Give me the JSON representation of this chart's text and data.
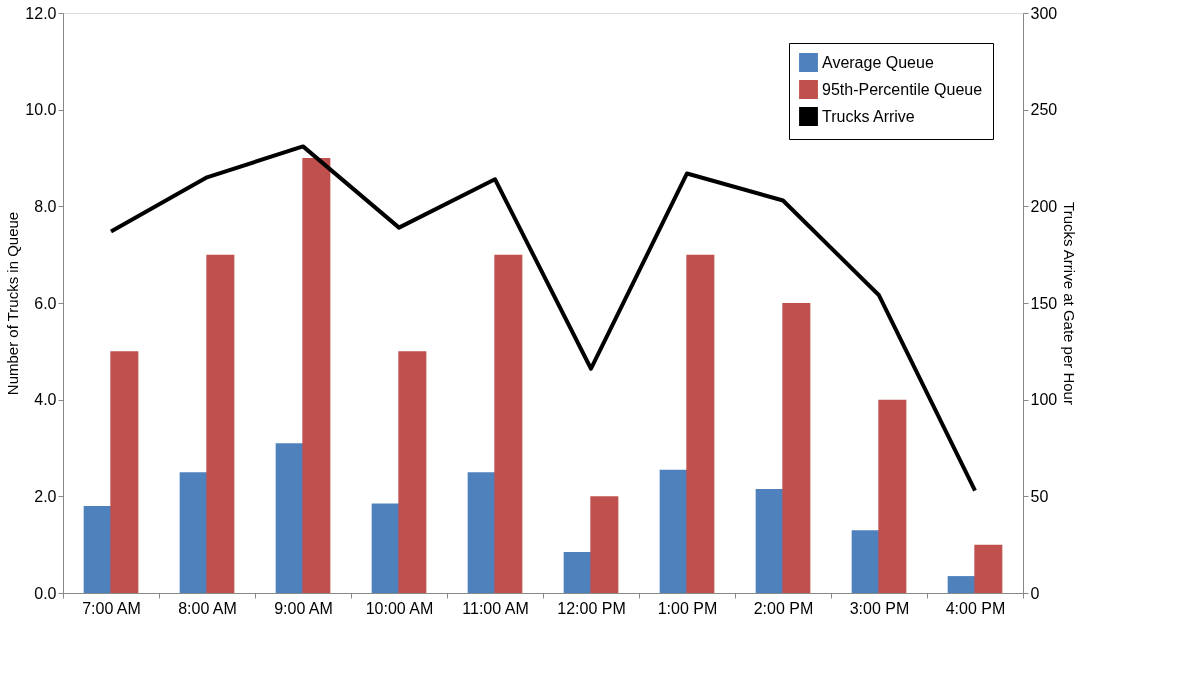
{
  "chart_data": {
    "type": "bar",
    "categories": [
      "7:00 AM",
      "8:00 AM",
      "9:00 AM",
      "10:00 AM",
      "11:00 AM",
      "12:00 PM",
      "1:00 PM",
      "2:00 PM",
      "3:00 PM",
      "4:00 PM"
    ],
    "series": [
      {
        "name": "Average Queue",
        "color": "#4f81bd",
        "values": [
          1.8,
          2.5,
          3.1,
          1.85,
          2.5,
          0.85,
          2.55,
          2.15,
          1.3,
          0.35
        ]
      },
      {
        "name": "95th-Percentile Queue",
        "color": "#c0504d",
        "values": [
          5,
          7,
          9,
          5,
          7,
          2,
          7,
          6,
          4,
          1
        ]
      },
      {
        "name": "Trucks Arrive",
        "color": "#000000",
        "type": "line",
        "axis": "y2",
        "values": [
          187,
          215,
          231,
          189,
          214,
          116,
          217,
          203,
          154,
          53
        ]
      }
    ],
    "ylabel": "Number of Trucks in Queue",
    "y2label": "Trucks Arrive at Gate per Hour",
    "ylim": [
      0,
      12
    ],
    "yticks": [
      {
        "value": 0,
        "label": "0.0"
      },
      {
        "value": 2,
        "label": "2.0"
      },
      {
        "value": 4,
        "label": "4.0"
      },
      {
        "value": 6,
        "label": "6.0"
      },
      {
        "value": 8,
        "label": "8.0"
      },
      {
        "value": 10,
        "label": "10.0"
      },
      {
        "value": 12,
        "label": "12.0"
      }
    ],
    "y2lim": [
      0,
      300
    ],
    "y2ticks": [
      0,
      50,
      100,
      150,
      200,
      250,
      300
    ],
    "legend": "top right",
    "grid": false
  }
}
